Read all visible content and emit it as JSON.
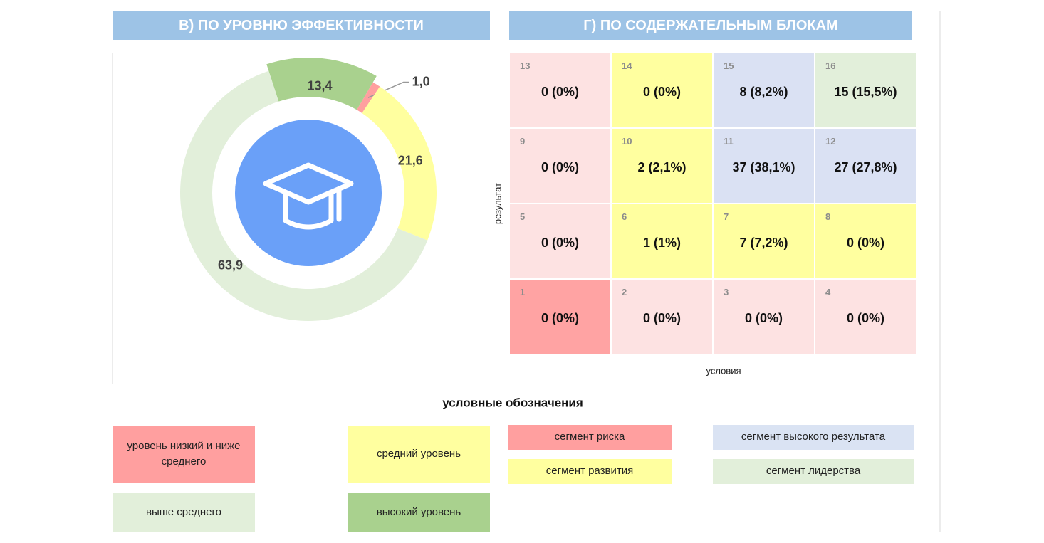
{
  "chart_data": {
    "type": "donut",
    "title": "В) ПО УРОВНЮ ЭФФЕКТИВНОСТИ",
    "categories": [
      "высокий уровень",
      "уровень низкий и ниже среднего",
      "средний уровень",
      "выше среднего"
    ],
    "values": [
      13.4,
      1.0,
      21.6,
      63.9
    ],
    "value_labels": [
      "13,4",
      "1,0",
      "21,6",
      "63,9"
    ],
    "colors": [
      "#a9d18e",
      "#ff9f9f",
      "#ffff9f",
      "#e2efda"
    ]
  },
  "legend_title": "условные обозначения",
  "matrix": {
    "title": "Г) ПО СОДЕРЖАТЕЛЬНЫМ БЛОКАМ",
    "y_label": "результат",
    "x_label": "условия",
    "rows": [
      [
        {
          "number": "13",
          "text": "0 (0%)",
          "color": "#fde2e2"
        },
        {
          "number": "14",
          "text": "0 (0%)",
          "color": "#ffff9f"
        },
        {
          "number": "15",
          "text": "8 (8,2%)",
          "color": "#dae1f3"
        },
        {
          "number": "16",
          "text": "15 (15,5%)",
          "color": "#e2efda"
        }
      ],
      [
        {
          "number": "9",
          "text": "0 (0%)",
          "color": "#fde2e2"
        },
        {
          "number": "10",
          "text": "2 (2,1%)",
          "color": "#ffff9f"
        },
        {
          "number": "11",
          "text": "37 (38,1%)",
          "color": "#dae1f3"
        },
        {
          "number": "12",
          "text": "27 (27,8%)",
          "color": "#dae1f3"
        }
      ],
      [
        {
          "number": "5",
          "text": "0 (0%)",
          "color": "#fde2e2"
        },
        {
          "number": "6",
          "text": "1 (1%)",
          "color": "#ffff9f"
        },
        {
          "number": "7",
          "text": "7 (7,2%)",
          "color": "#ffff9f"
        },
        {
          "number": "8",
          "text": "0 (0%)",
          "color": "#ffff9f"
        }
      ],
      [
        {
          "number": "1",
          "text": "0 (0%)",
          "color": "#ffa3a3"
        },
        {
          "number": "2",
          "text": "0 (0%)",
          "color": "#fde2e2"
        },
        {
          "number": "3",
          "text": "0 (0%)",
          "color": "#fde2e2"
        },
        {
          "number": "4",
          "text": "0 (0%)",
          "color": "#fde2e2"
        }
      ]
    ]
  },
  "segments": [
    {
      "name": "сегмент риска",
      "color": "#ff9f9f"
    },
    {
      "name": "сегмент развития",
      "color": "#ffff9f"
    },
    {
      "name": "сегмент высокого результата",
      "color": "#dae3f3"
    },
    {
      "name": "сегмент лидерства",
      "color": "#e2efda"
    }
  ]
}
